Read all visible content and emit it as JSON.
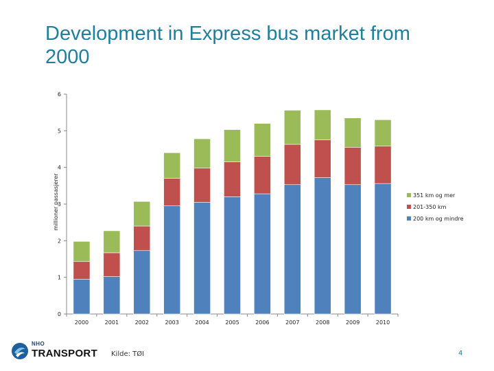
{
  "slide": {
    "title": "Development in Express bus market from 2000",
    "source": "Kilde: TØI",
    "page_number": "4",
    "logo_top": "NHO",
    "logo_main": "TRANSPORT"
  },
  "colors": {
    "blue": "#4f81bd",
    "red": "#c0504d",
    "green": "#9bbb59",
    "title": "#1f7e9c"
  },
  "chart_data": {
    "type": "bar",
    "stacked": true,
    "title": "",
    "xlabel": "",
    "ylabel": "millioner passasjerer",
    "ylim": [
      0,
      6
    ],
    "yticks": [
      0,
      1,
      2,
      3,
      4,
      5,
      6
    ],
    "grid": false,
    "legend_position": "right",
    "categories": [
      "2000",
      "2001",
      "2002",
      "2003",
      "2004",
      "2005",
      "2006",
      "2007",
      "2008",
      "2009",
      "2010"
    ],
    "series": [
      {
        "name": "200 km og mindre",
        "color": "#4f81bd",
        "values": [
          0.95,
          1.02,
          1.73,
          2.95,
          3.05,
          3.2,
          3.28,
          3.53,
          3.72,
          3.53,
          3.56
        ]
      },
      {
        "name": "201-350 km",
        "color": "#c0504d",
        "values": [
          0.48,
          0.65,
          0.67,
          0.75,
          0.93,
          0.95,
          1.02,
          1.1,
          1.03,
          1.02,
          1.02
        ]
      },
      {
        "name": "351 km og mer",
        "color": "#9bbb59",
        "values": [
          0.55,
          0.6,
          0.67,
          0.7,
          0.8,
          0.88,
          0.9,
          0.93,
          0.82,
          0.8,
          0.72
        ]
      }
    ],
    "legend_order": [
      "351 km og mer",
      "201-350 km",
      "200 km og mindre"
    ]
  }
}
